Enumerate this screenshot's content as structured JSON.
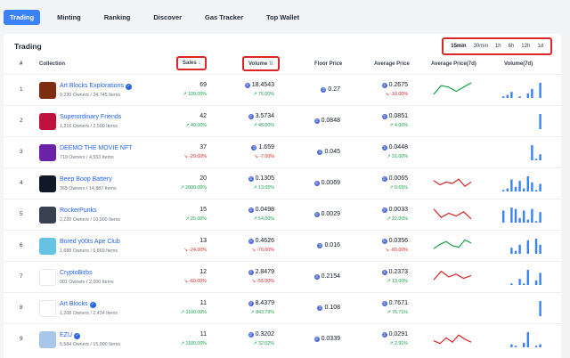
{
  "nav": {
    "tabs": [
      "Trading",
      "Minting",
      "Ranking",
      "Discover",
      "Gas Tracker",
      "Top Wallet"
    ],
    "active": "Trading"
  },
  "panel": {
    "title": "Trading"
  },
  "timerange": {
    "options": [
      "15min",
      "30min",
      "1h",
      "6h",
      "12h",
      "1d"
    ],
    "selected": "15min"
  },
  "columns": {
    "rank": "#",
    "collection": "Collection",
    "sales": "Sales",
    "volume": "Volume",
    "floor": "Floor Price",
    "avg": "Average Price",
    "avg7d": "Average Price(7d)",
    "vol7d": "Volume(7d)"
  },
  "colors": {
    "accent": "#3b82f6",
    "link": "#2563eb",
    "up": "#16a34a",
    "down": "#dc2626",
    "highlight": "#dc2626"
  },
  "rows": [
    {
      "rank": "1",
      "name": "Art Blocks Explorations",
      "verified": true,
      "sub": "9,230 Owners / 24,745 Items",
      "sales": "69",
      "sales_pct": "109.00%",
      "sales_dir": "up",
      "volume": "18.4543",
      "volume_pct": "76.00%",
      "volume_dir": "up",
      "floor": "0.27",
      "avg": "0.2675",
      "avg_pct": "-16.00%",
      "avg_dir": "down",
      "trend": "up",
      "spark": [
        2,
        8,
        7,
        4,
        7,
        10
      ],
      "bars": [
        1,
        2,
        4,
        0,
        1,
        0,
        3,
        6,
        0,
        10
      ]
    },
    {
      "rank": "2",
      "name": "Superordinary Friends",
      "verified": false,
      "sub": "1,216 Owners / 2,500 Items",
      "sales": "42",
      "sales_pct": "40.00%",
      "sales_dir": "up",
      "volume": "3.5734",
      "volume_pct": "45.00%",
      "volume_dir": "up",
      "floor": "0.0848",
      "avg": "0.0851",
      "avg_pct": "4.00%",
      "avg_dir": "up",
      "trend": "flat",
      "spark": [],
      "bars": [
        0,
        0,
        0,
        0,
        0,
        0,
        0,
        0,
        0,
        10
      ]
    },
    {
      "rank": "3",
      "name": "DEEMO THE MOVIE NFT",
      "verified": false,
      "sub": "719 Owners / 4,553 Items",
      "sales": "37",
      "sales_pct": "-29.00%",
      "sales_dir": "down",
      "volume": "1.659",
      "volume_pct": "-7.00%",
      "volume_dir": "down",
      "floor": "0.045",
      "avg": "0.0448",
      "avg_pct": "31.00%",
      "avg_dir": "up",
      "trend": "flat",
      "spark": [],
      "bars": [
        0,
        0,
        0,
        0,
        0,
        0,
        0,
        10,
        1,
        4
      ]
    },
    {
      "rank": "4",
      "name": "Beep Boop Battery",
      "verified": false,
      "sub": "365 Owners / 14,887 Items",
      "sales": "20",
      "sales_pct": "2000.00%",
      "sales_dir": "up",
      "volume": "0.1305",
      "volume_pct": "13.05%",
      "volume_dir": "up",
      "floor": "0.0069",
      "avg": "0.0065",
      "avg_pct": "0.65%",
      "avg_dir": "up",
      "trend": "down",
      "spark": [
        7,
        4,
        6,
        5,
        8,
        3,
        6
      ],
      "bars": [
        1,
        2,
        8,
        3,
        7,
        2,
        10,
        6,
        1,
        5
      ]
    },
    {
      "rank": "5",
      "name": "RockerPunks",
      "verified": false,
      "sub": "2,220 Owners / 10,000 Items",
      "sales": "15",
      "sales_pct": "25.00%",
      "sales_dir": "up",
      "volume": "0.0498",
      "volume_pct": "54.00%",
      "volume_dir": "up",
      "floor": "0.0029",
      "avg": "0.0033",
      "avg_pct": "22.00%",
      "avg_dir": "up",
      "trend": "down",
      "spark": [
        9,
        3,
        6,
        4,
        7,
        2
      ],
      "bars": [
        8,
        0,
        10,
        9,
        3,
        8,
        2,
        9,
        1,
        7
      ]
    },
    {
      "rank": "6",
      "name": "Bored y00ts Ape Club",
      "verified": false,
      "sub": "1,688 Owners / 6,869 Items",
      "sales": "13",
      "sales_pct": "-24.00%",
      "sales_dir": "down",
      "volume": "0.4626",
      "volume_pct": "-70.00%",
      "volume_dir": "down",
      "floor": "0.016",
      "avg": "0.0356",
      "avg_pct": "-60.00%",
      "avg_dir": "down",
      "trend": "up",
      "spark": [
        3,
        6,
        8,
        5,
        4,
        9,
        7
      ],
      "bars": [
        0,
        0,
        4,
        2,
        6,
        0,
        9,
        0,
        10,
        6
      ]
    },
    {
      "rank": "7",
      "name": "CryptoBirbs",
      "verified": false,
      "sub": "901 Owners / 2,000 Items",
      "sales": "12",
      "sales_pct": "-60.00%",
      "sales_dir": "down",
      "volume": "2.8479",
      "volume_pct": "-55.00%",
      "volume_dir": "down",
      "floor": "0.2154",
      "avg": "0.2373",
      "avg_pct": "13.00%",
      "avg_dir": "up",
      "trend": "down",
      "spark": [
        3,
        9,
        5,
        7,
        4,
        6
      ],
      "bars": [
        0,
        0,
        1,
        0,
        4,
        1,
        10,
        0,
        3,
        8
      ]
    },
    {
      "rank": "8",
      "name": "Art Blocks",
      "verified": true,
      "sub": "1,208 Owners / 2,434 Items",
      "sales": "11",
      "sales_pct": "1100.00%",
      "sales_dir": "up",
      "volume": "8.4379",
      "volume_pct": "843.79%",
      "volume_dir": "up",
      "floor": "0.108",
      "avg": "0.7671",
      "avg_pct": "76.71%",
      "avg_dir": "up",
      "trend": "flat",
      "spark": [],
      "bars": [
        0,
        0,
        0,
        0,
        0,
        0,
        0,
        0,
        0,
        10
      ]
    },
    {
      "rank": "9",
      "name": "EZU",
      "verified": true,
      "sub": "5,584 Owners / 15,000 Items",
      "sales": "11",
      "sales_pct": "1100.00%",
      "sales_dir": "up",
      "volume": "0.3202",
      "volume_pct": "32.02%",
      "volume_dir": "up",
      "floor": "0.0339",
      "avg": "0.0291",
      "avg_pct": "2.91%",
      "avg_dir": "up",
      "trend": "down",
      "spark": [
        4,
        2,
        6,
        3,
        8,
        5,
        3
      ],
      "bars": [
        0,
        0,
        2,
        1,
        0,
        3,
        10,
        0,
        1,
        2
      ]
    }
  ]
}
